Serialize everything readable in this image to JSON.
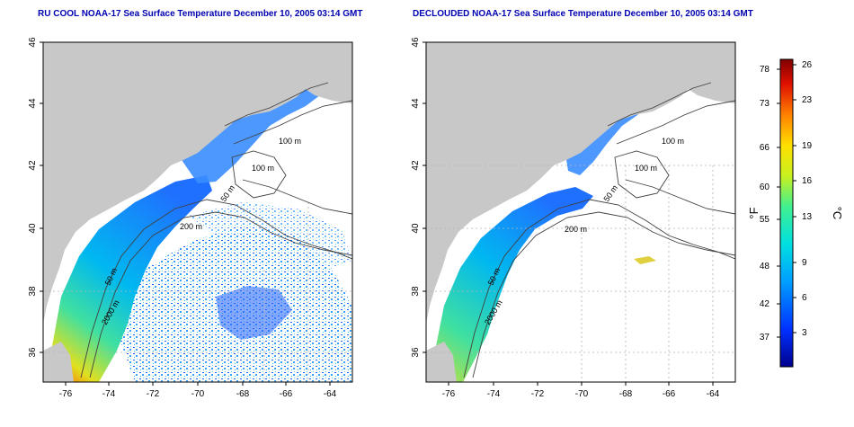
{
  "left_panel": {
    "title": "RU COOL NOAA-17 Sea Surface Temperature December 10, 2005 03:14 GMT",
    "x_ticks": [
      "-76",
      "-74",
      "-72",
      "-70",
      "-68",
      "-66",
      "-64"
    ],
    "y_ticks": [
      "46",
      "44",
      "42",
      "40",
      "38",
      "36"
    ],
    "contour_labels": [
      "100 m",
      "100 m",
      "50 m",
      "200 m",
      "50 m",
      "2000 m"
    ]
  },
  "right_panel": {
    "title": "DECLOUDED NOAA-17 Sea Surface Temperature December 10, 2005 03:14 GMT",
    "x_ticks": [
      "-76",
      "-74",
      "-72",
      "-70",
      "-68",
      "-66",
      "-64"
    ],
    "y_ticks": [
      "46",
      "44",
      "42",
      "40",
      "38",
      "36"
    ],
    "contour_labels": [
      "100 m",
      "100 m",
      "50 m",
      "200 m",
      "50 m",
      "2000 m"
    ]
  },
  "colorbar": {
    "f_label": "°F",
    "c_label": "°C",
    "f_ticks": [
      "78",
      "73",
      "66",
      "60",
      "55",
      "48",
      "42",
      "37"
    ],
    "c_ticks": [
      "26",
      "23",
      "19",
      "16",
      "13",
      "9",
      "6",
      "3"
    ]
  },
  "colors": {
    "title": "#0000b0",
    "land": "#c8c8c8",
    "grid": "#b4b4b4",
    "contour": "#404040"
  }
}
